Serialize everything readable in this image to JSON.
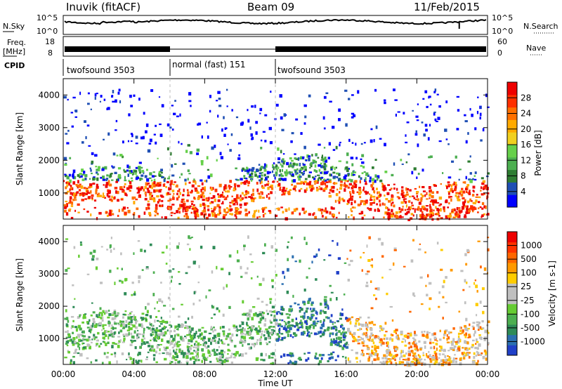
{
  "header": {
    "station": "Inuvik (fitACF)",
    "beam": "Beam 09",
    "date": "11/Feb/2015"
  },
  "side_labels": {
    "nsky": "N.Sky",
    "freq_line1": "Freq.",
    "freq_line2": "[MHz]",
    "cpid": "CPID",
    "nsearch": "N.Search",
    "nave": "Nave"
  },
  "noise_panel": {
    "left_ticks": [
      "10^5",
      "10^0"
    ],
    "right_ticks": [
      "10^5",
      "10^0"
    ]
  },
  "freq_panel": {
    "left_ticks": [
      "18",
      "8"
    ],
    "right_ticks": [
      "60",
      "0"
    ]
  },
  "cpid_segments": [
    {
      "label": "twofsound 3503",
      "start_hour": 0,
      "end_hour": 6
    },
    {
      "label": "normal (fast) 151",
      "start_hour": 6,
      "end_hour": 12
    },
    {
      "label": "twofsound 3503",
      "start_hour": 12,
      "end_hour": 24
    }
  ],
  "power_panel": {
    "ylabel": "Slant Range [km]",
    "yticks": [
      1000,
      2000,
      3000,
      4000
    ],
    "colorbar_title": "Power [dB]",
    "colorbar_ticks": [
      "28",
      "24",
      "20",
      "16",
      "12",
      "8",
      "4"
    ],
    "colors": [
      "#0000ff",
      "#1f4fb4",
      "#2e7d32",
      "#4caf50",
      "#66d04a",
      "#f0d020",
      "#ffaa00",
      "#ff7000",
      "#ff3000",
      "#ee0000"
    ]
  },
  "velocity_panel": {
    "ylabel": "Slant Range [km]",
    "yticks": [
      1000,
      2000,
      3000,
      4000
    ],
    "colorbar_title": "Velocity [m s-1]",
    "colorbar_ticks": [
      "1000",
      "500",
      "100",
      "25",
      "-25",
      "-100",
      "-500",
      "-1000"
    ],
    "colors": [
      "#2040c8",
      "#2b6fb0",
      "#2e8b57",
      "#4caf50",
      "#66cc33",
      "#c0c0c0",
      "#c0c0c0",
      "#ffcc00",
      "#ff9900",
      "#ff6600",
      "#ff3300",
      "#ee0000"
    ]
  },
  "x_axis": {
    "label": "Time UT",
    "ticks": [
      "00:00",
      "04:00",
      "08:00",
      "12:00",
      "16:00",
      "20:00",
      "00:00"
    ]
  },
  "chart_data": {
    "type": "heatmap",
    "x_range_hours": [
      0,
      24
    ],
    "y_range_km": [
      200,
      4500
    ],
    "panels": [
      "Power [dB]",
      "Velocity [m s-1]"
    ]
  },
  "colors": {
    "ink": "#000000",
    "background": "#ffffff"
  }
}
